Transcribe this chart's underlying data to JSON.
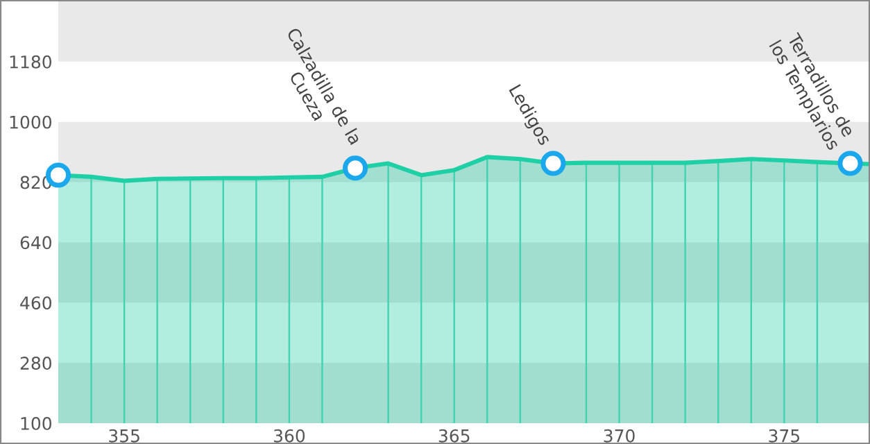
{
  "chart_data": {
    "type": "area",
    "x": [
      353,
      354,
      355,
      356,
      357,
      358,
      359,
      360,
      361,
      362,
      363,
      364,
      365,
      366,
      367,
      368,
      369,
      370,
      371,
      372,
      373,
      374,
      375,
      376,
      377,
      377.6
    ],
    "series": [
      {
        "type": "area",
        "color": "#1fcfa5",
        "values": [
          841,
          836,
          824,
          830,
          831,
          832,
          832,
          834,
          836,
          862,
          876,
          841,
          856,
          895,
          889,
          876,
          878,
          878,
          878,
          878,
          883,
          889,
          885,
          880,
          876,
          874
        ]
      },
      {
        "type": "bar",
        "color": "#3fd3ae",
        "values": [
          null,
          836,
          824,
          830,
          831,
          832,
          832,
          834,
          836,
          null,
          876,
          841,
          856,
          895,
          889,
          null,
          878,
          878,
          878,
          878,
          883,
          889,
          885,
          880,
          null,
          null
        ]
      },
      {
        "type": "scatter",
        "marker": "circle",
        "color": "#1aa7ec",
        "x": [
          353,
          362,
          368,
          377
        ],
        "values": [
          841,
          862,
          876,
          876
        ]
      }
    ],
    "xlim": [
      353,
      377.6
    ],
    "ylim": [
      100,
      1360
    ],
    "xticks": [
      355,
      360,
      365,
      370,
      375
    ],
    "yticks": [
      100,
      280,
      460,
      640,
      820,
      1000,
      1180
    ],
    "bands": [
      {
        "axis": "y",
        "from": 100,
        "to": 280,
        "color": "#e6e6e6"
      },
      {
        "axis": "y",
        "from": 460,
        "to": 640,
        "color": "#e6e6e6"
      },
      {
        "axis": "y",
        "from": 820,
        "to": 1000,
        "color": "#e9e9e9"
      },
      {
        "axis": "y",
        "from": 1180,
        "to": 1360,
        "color": "#e9e9e9"
      }
    ],
    "annotations": [
      {
        "text": "Calzadilla de la\nCueza",
        "x": 362,
        "y": 862
      },
      {
        "text": "Ledigos",
        "x": 368,
        "y": 876
      },
      {
        "text": "Terradillos de\nlos Templarios",
        "x": 377,
        "y": 876
      }
    ],
    "grid": false,
    "legend": false
  }
}
